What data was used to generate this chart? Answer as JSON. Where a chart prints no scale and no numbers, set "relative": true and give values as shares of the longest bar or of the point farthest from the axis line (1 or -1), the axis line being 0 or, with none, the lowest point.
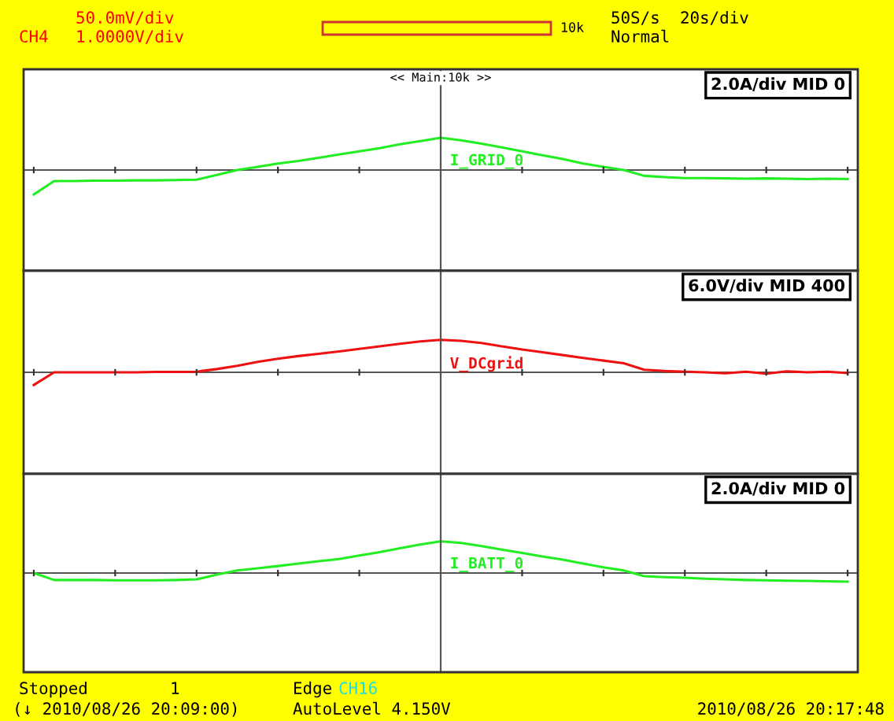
{
  "chart_data": [
    {
      "type": "line",
      "relative": true,
      "legend": false,
      "marker": "none",
      "line_style": "solid",
      "categories": [
        null,
        null,
        null,
        null,
        null,
        null,
        null,
        null,
        null,
        null,
        null,
        null,
        null,
        null,
        null,
        null,
        null,
        null,
        null,
        null,
        null,
        null,
        null,
        null,
        null,
        null,
        null,
        null,
        null,
        null,
        null,
        null,
        null,
        null,
        null,
        null,
        null,
        null,
        null,
        null,
        null
      ],
      "series": [
        {
          "name": "I_GRID_0",
          "color": "#22ee22",
          "values": [
            -0.76,
            -0.34,
            -0.34,
            -0.33,
            -0.33,
            -0.32,
            -0.32,
            -0.31,
            -0.3,
            -0.15,
            0.0,
            0.1,
            0.2,
            0.28,
            0.38,
            0.48,
            0.58,
            0.68,
            0.8,
            0.9,
            1.0,
            0.92,
            0.82,
            0.7,
            0.58,
            0.46,
            0.34,
            0.2,
            0.1,
            0.0,
            -0.18,
            -0.22,
            -0.25,
            -0.25,
            -0.26,
            -0.27,
            -0.26,
            -0.27,
            -0.28,
            -0.27,
            -0.28
          ]
        }
      ],
      "annotations": [
        "2.0A/div MID 0",
        "<< Main:10k >>"
      ]
    },
    {
      "type": "line",
      "relative": true,
      "legend": false,
      "marker": "none",
      "line_style": "solid",
      "categories": [
        null,
        null,
        null,
        null,
        null,
        null,
        null,
        null,
        null,
        null,
        null,
        null,
        null,
        null,
        null,
        null,
        null,
        null,
        null,
        null,
        null,
        null,
        null,
        null,
        null,
        null,
        null,
        null,
        null,
        null,
        null,
        null,
        null,
        null,
        null,
        null,
        null,
        null,
        null,
        null,
        null
      ],
      "series": [
        {
          "name": "V_DCgrid",
          "color": "#ee1111",
          "values": [
            -0.39,
            0.0,
            0.0,
            0.0,
            0.0,
            0.0,
            0.01,
            0.01,
            0.02,
            0.1,
            0.2,
            0.32,
            0.42,
            0.5,
            0.57,
            0.64,
            0.72,
            0.8,
            0.88,
            0.95,
            1.0,
            0.97,
            0.9,
            0.8,
            0.7,
            0.62,
            0.53,
            0.44,
            0.36,
            0.28,
            0.08,
            0.04,
            0.02,
            0.0,
            -0.03,
            0.02,
            -0.04,
            0.03,
            0.0,
            0.02,
            -0.02
          ]
        }
      ],
      "annotations": [
        "6.0V/div MID 400"
      ]
    },
    {
      "type": "line",
      "relative": true,
      "legend": false,
      "marker": "none",
      "line_style": "solid",
      "categories": [
        null,
        null,
        null,
        null,
        null,
        null,
        null,
        null,
        null,
        null,
        null,
        null,
        null,
        null,
        null,
        null,
        null,
        null,
        null,
        null,
        null,
        null,
        null,
        null,
        null,
        null,
        null,
        null,
        null,
        null,
        null,
        null,
        null,
        null,
        null,
        null,
        null,
        null,
        null,
        null,
        null
      ],
      "series": [
        {
          "name": "I_BATT_0",
          "color": "#22ee22",
          "values": [
            0.0,
            -0.22,
            -0.22,
            -0.22,
            -0.23,
            -0.23,
            -0.23,
            -0.22,
            -0.2,
            -0.05,
            0.08,
            0.15,
            0.22,
            0.3,
            0.37,
            0.44,
            0.55,
            0.66,
            0.78,
            0.9,
            1.0,
            0.95,
            0.85,
            0.74,
            0.63,
            0.52,
            0.42,
            0.3,
            0.18,
            0.08,
            -0.1,
            -0.13,
            -0.15,
            -0.18,
            -0.2,
            -0.22,
            -0.23,
            -0.24,
            -0.25,
            -0.26,
            -0.27
          ]
        }
      ],
      "annotations": [
        "2.0A/div MID 0"
      ]
    },
    {
      "type": "other",
      "annotations": [
        "50.0mV/div",
        "CH4",
        "1.0000V/div",
        "10k",
        "50S/s",
        "20s/div",
        "Normal",
        "Stopped",
        "1",
        "Edge",
        "CH16",
        "(↓ 2010/08/26 20:09:00)",
        "AutoLevel 4.150V",
        "2010/08/26 20:17:48"
      ]
    }
  ]
}
